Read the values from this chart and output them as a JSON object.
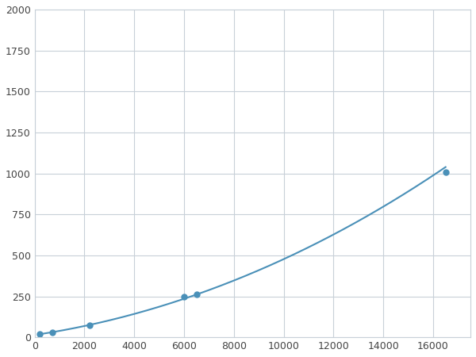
{
  "x_points": [
    200,
    700,
    2200,
    6000,
    6500,
    16500
  ],
  "y_points": [
    20,
    30,
    75,
    250,
    260,
    1010
  ],
  "line_color": "#4a90b8",
  "marker_color": "#4a90b8",
  "marker_size": 5,
  "xlim": [
    0,
    17500
  ],
  "ylim": [
    0,
    2000
  ],
  "xticks": [
    0,
    2000,
    4000,
    6000,
    8000,
    10000,
    12000,
    14000,
    16000
  ],
  "yticks": [
    0,
    250,
    500,
    750,
    1000,
    1250,
    1500,
    1750,
    2000
  ],
  "grid_color": "#c8d0d8",
  "background_color": "#ffffff",
  "spine_color": "#c8d0d8",
  "tick_label_color": "#444444",
  "tick_label_size": 9,
  "figwidth": 6.0,
  "figheight": 4.5,
  "dpi": 100
}
